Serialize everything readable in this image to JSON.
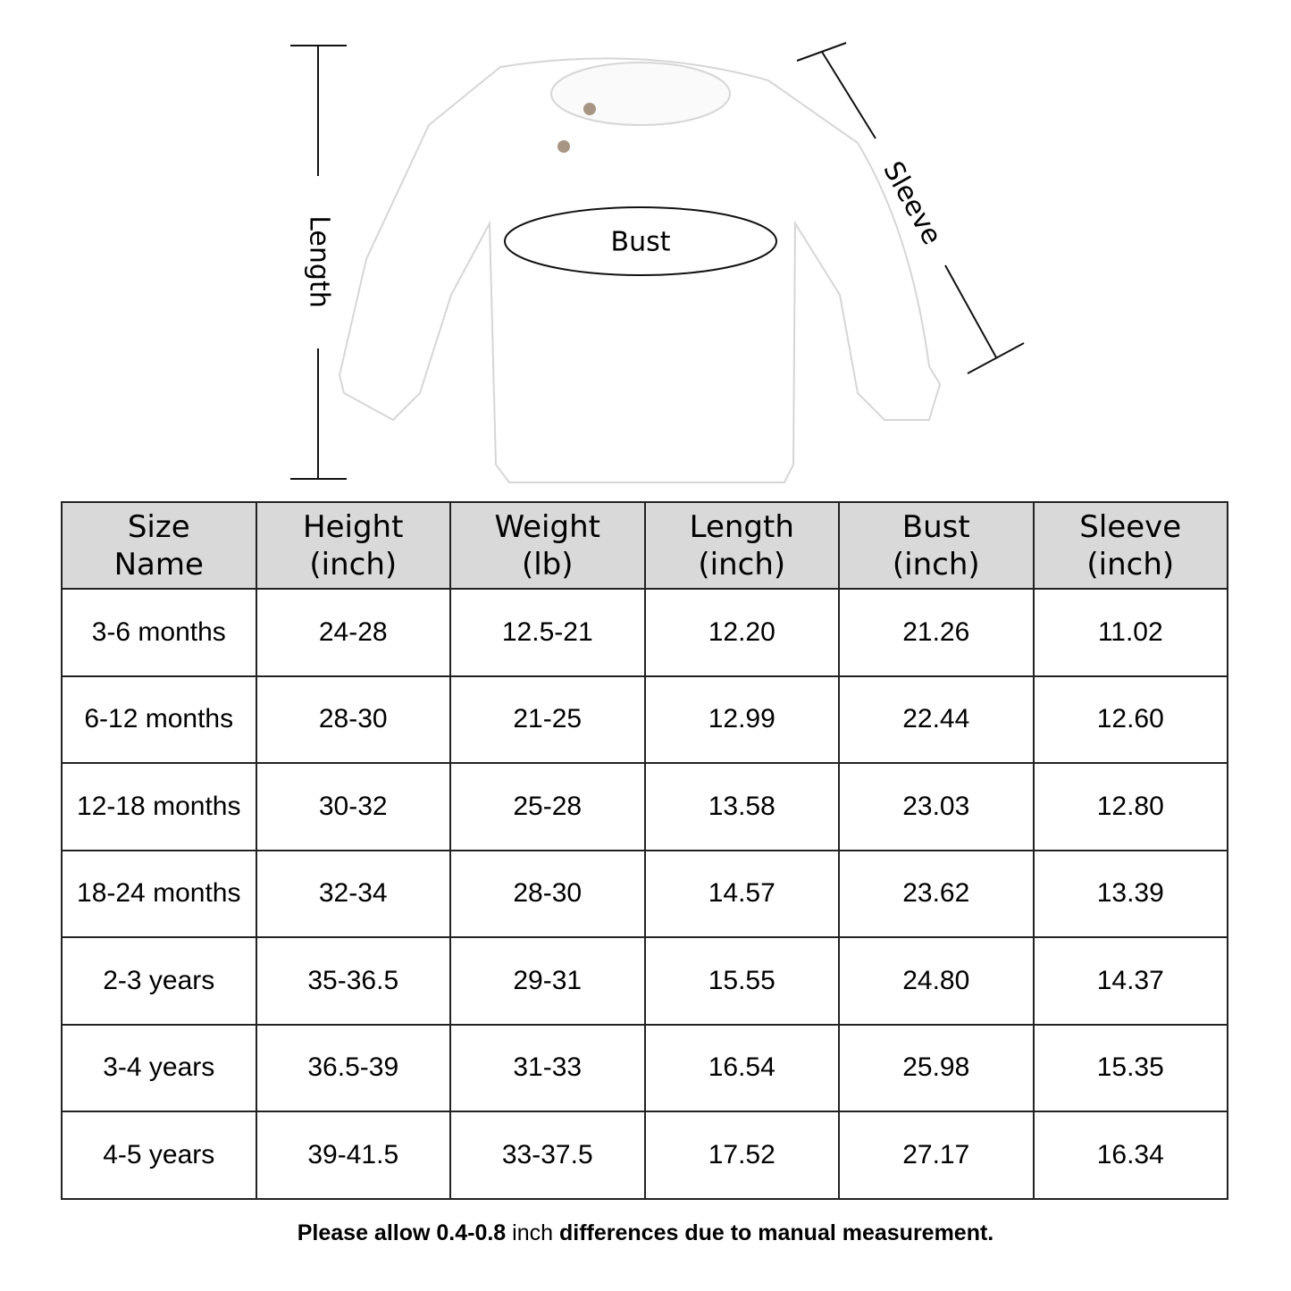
{
  "diagram": {
    "length_label": "Length",
    "bust_label": "Bust",
    "sleeve_label": "Sleeve"
  },
  "table": {
    "header": [
      [
        "Size",
        "Name"
      ],
      [
        "Height",
        "(inch)"
      ],
      [
        "Weight",
        "(lb)"
      ],
      [
        "Length",
        "(inch)"
      ],
      [
        "Bust",
        "(inch)"
      ],
      [
        "Sleeve",
        "(inch)"
      ]
    ],
    "rows": [
      [
        "3-6 months",
        "24-28",
        "12.5-21",
        "12.20",
        "21.26",
        "11.02"
      ],
      [
        "6-12 months",
        "28-30",
        "21-25",
        "12.99",
        "22.44",
        "12.60"
      ],
      [
        "12-18 months",
        "30-32",
        "25-28",
        "13.58",
        "23.03",
        "12.80"
      ],
      [
        "18-24 months",
        "32-34",
        "28-30",
        "14.57",
        "23.62",
        "13.39"
      ],
      [
        "2-3 years",
        "35-36.5",
        "29-31",
        "15.55",
        "24.80",
        "14.37"
      ],
      [
        "3-4 years",
        "36.5-39",
        "31-33",
        "16.54",
        "25.98",
        "15.35"
      ],
      [
        "4-5 years",
        "39-41.5",
        "33-37.5",
        "17.52",
        "27.17",
        "16.34"
      ]
    ]
  },
  "note": {
    "parts": [
      "Please allow 0.4-0.8",
      "inch",
      "differences due to manual measurement."
    ]
  }
}
